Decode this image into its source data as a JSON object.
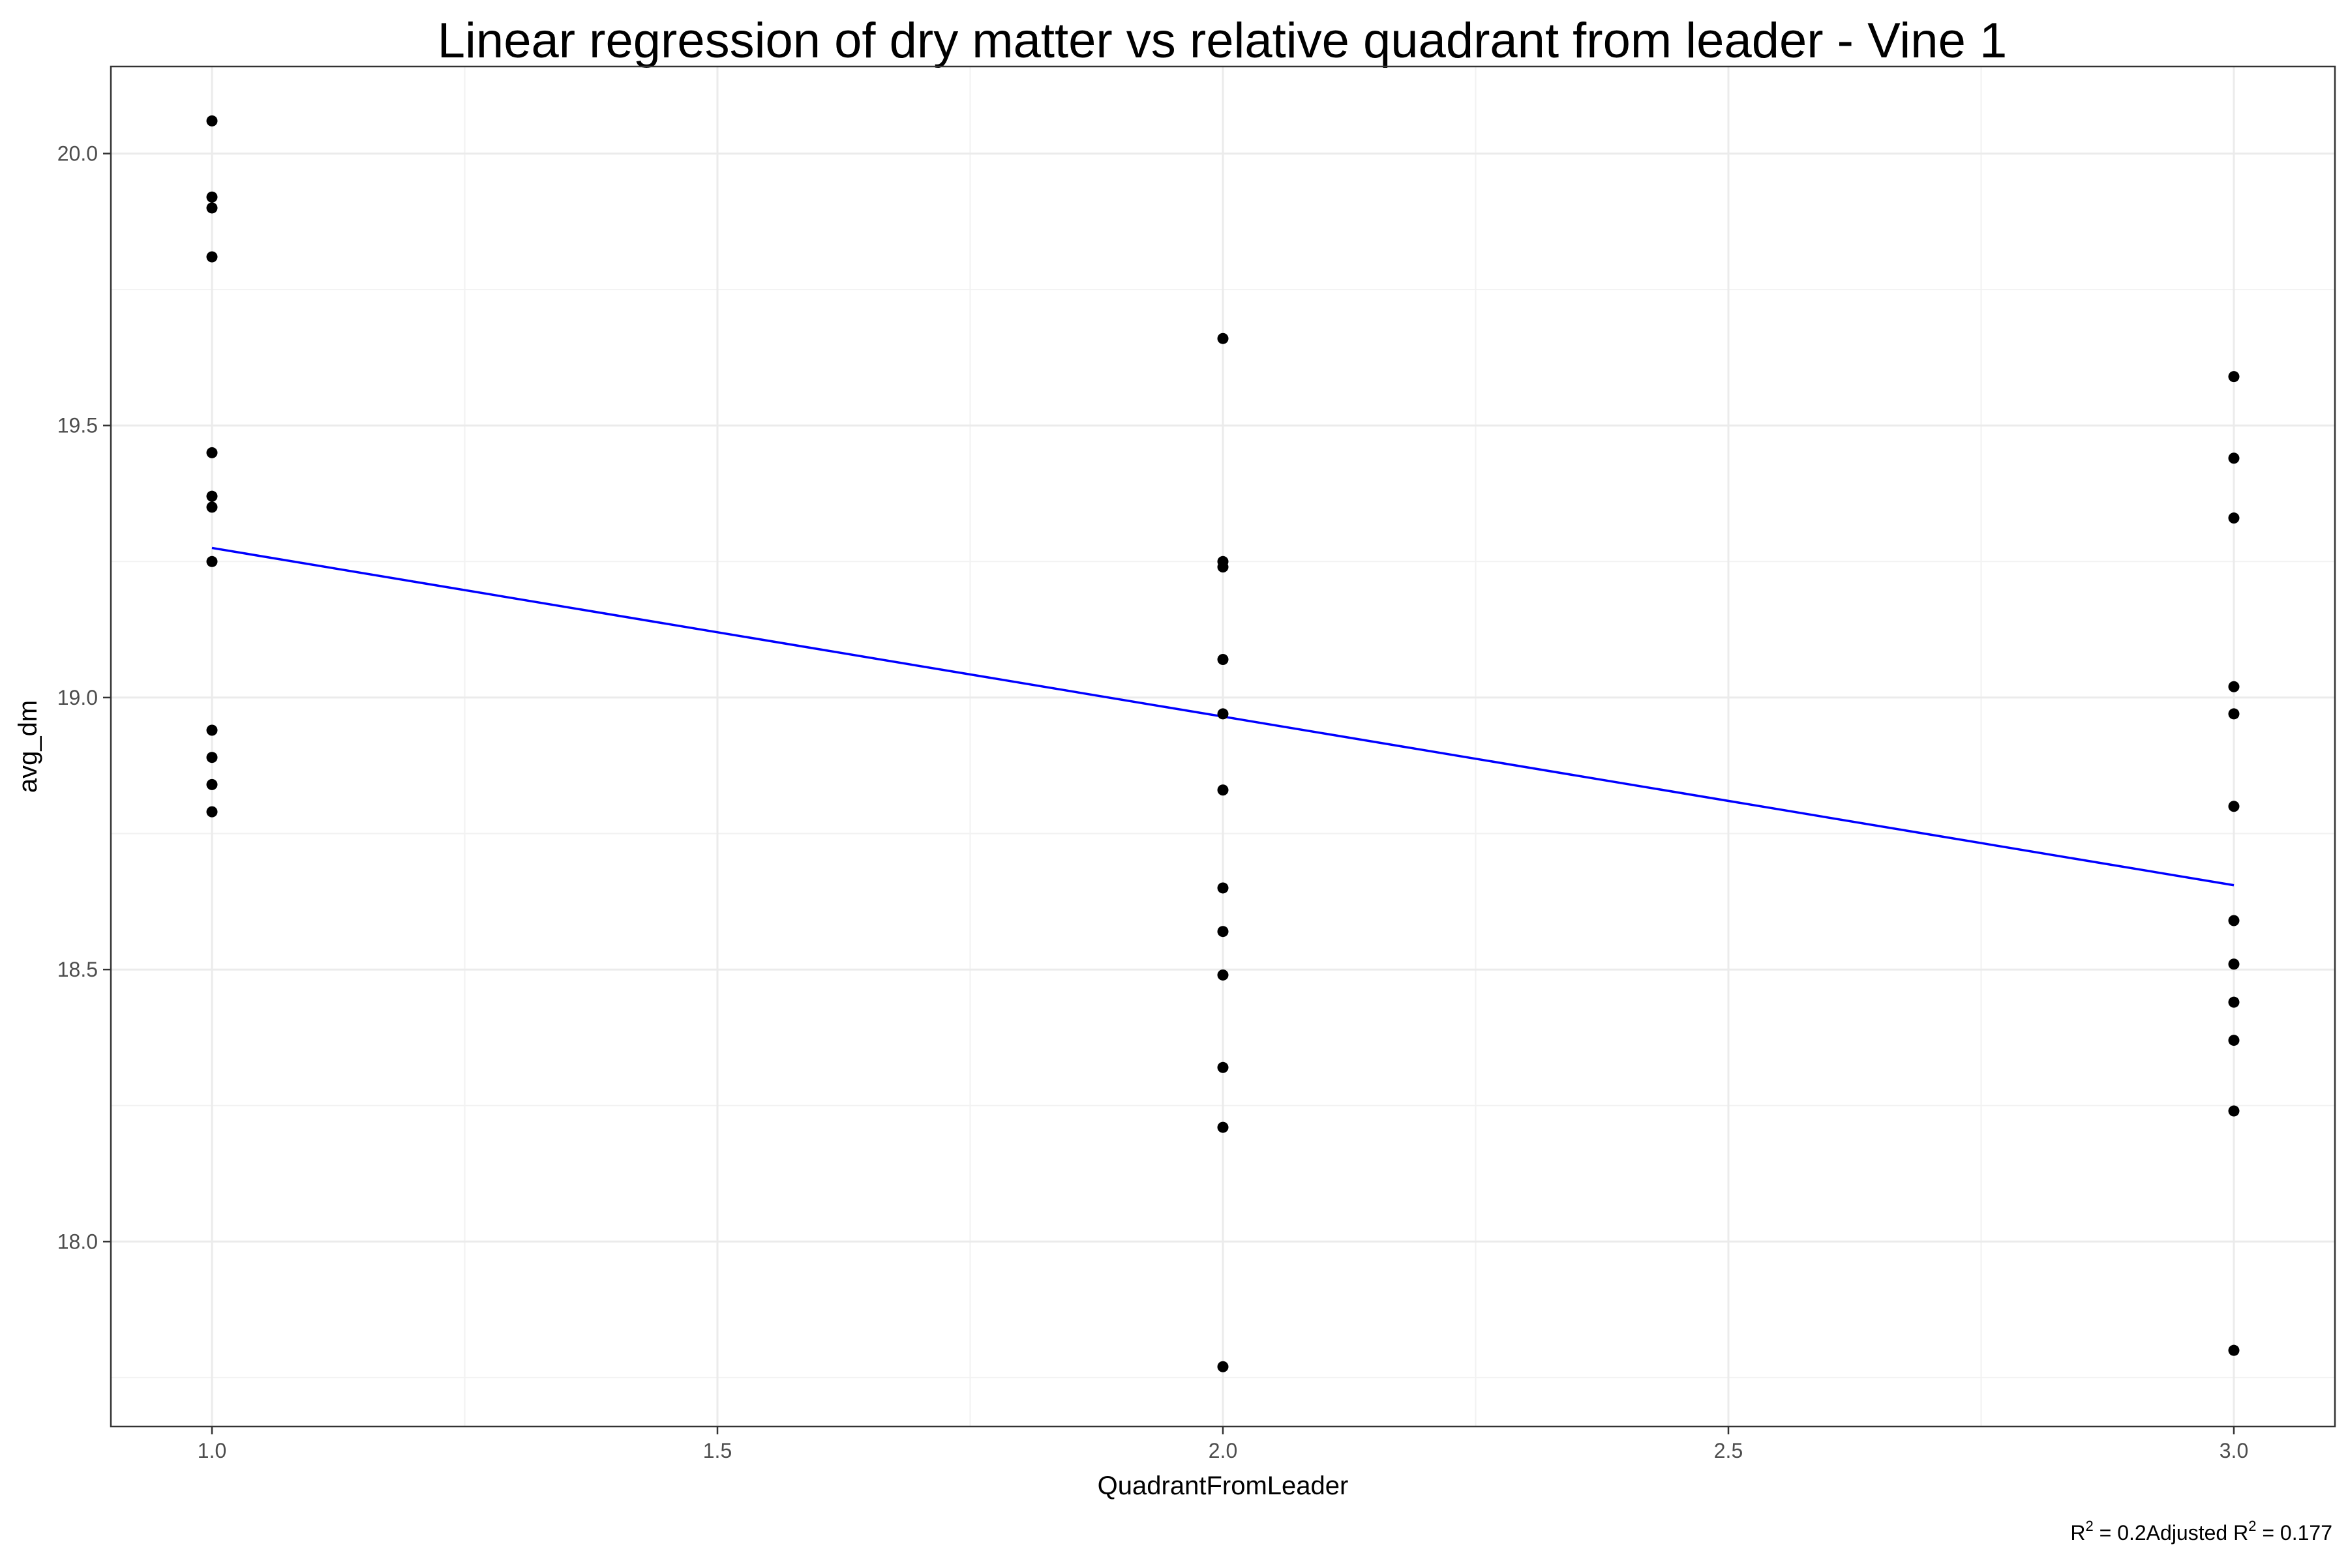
{
  "chart_data": {
    "type": "scatter",
    "title": "Linear regression of dry matter vs relative quadrant from leader - Vine 1",
    "xlabel": "QuadrantFromLeader",
    "ylabel": "avg_dm",
    "xlim": [
      0.9,
      3.1
    ],
    "ylim": [
      17.66,
      20.16
    ],
    "x_ticks": [
      1.0,
      1.5,
      2.0,
      2.5,
      3.0
    ],
    "x_tick_labels": [
      "1.0",
      "1.5",
      "2.0",
      "2.5",
      "3.0"
    ],
    "y_ticks": [
      18.0,
      18.5,
      19.0,
      19.5,
      20.0
    ],
    "y_tick_labels": [
      "18.0",
      "18.5",
      "19.0",
      "19.5",
      "20.0"
    ],
    "grid": true,
    "theme": "black-and-white",
    "series": [
      {
        "kind": "points",
        "color": "#000000",
        "points": [
          [
            1,
            20.06
          ],
          [
            1,
            19.92
          ],
          [
            1,
            19.9
          ],
          [
            1,
            19.81
          ],
          [
            1,
            19.45
          ],
          [
            1,
            19.37
          ],
          [
            1,
            19.35
          ],
          [
            1,
            19.25
          ],
          [
            1,
            18.94
          ],
          [
            1,
            18.89
          ],
          [
            1,
            18.84
          ],
          [
            1,
            18.79
          ],
          [
            2,
            19.66
          ],
          [
            2,
            19.25
          ],
          [
            2,
            19.24
          ],
          [
            2,
            19.07
          ],
          [
            2,
            18.97
          ],
          [
            2,
            18.83
          ],
          [
            2,
            18.65
          ],
          [
            2,
            18.57
          ],
          [
            2,
            18.49
          ],
          [
            2,
            18.32
          ],
          [
            2,
            18.21
          ],
          [
            2,
            17.77
          ],
          [
            3,
            19.59
          ],
          [
            3,
            19.44
          ],
          [
            3,
            19.33
          ],
          [
            3,
            19.02
          ],
          [
            3,
            18.97
          ],
          [
            3,
            18.8
          ],
          [
            3,
            18.59
          ],
          [
            3,
            18.51
          ],
          [
            3,
            18.44
          ],
          [
            3,
            18.37
          ],
          [
            3,
            18.24
          ],
          [
            3,
            17.8
          ]
        ]
      },
      {
        "kind": "regression-line",
        "color": "#0000ff",
        "points": [
          [
            1,
            19.275
          ],
          [
            3,
            18.655
          ]
        ]
      }
    ],
    "caption": {
      "r2_label": "R",
      "r2_sup": "2",
      "r2_value": " = 0.2",
      "adj_label": "Adjusted R",
      "adj_sup": "2",
      "adj_value": " = 0.177"
    }
  }
}
